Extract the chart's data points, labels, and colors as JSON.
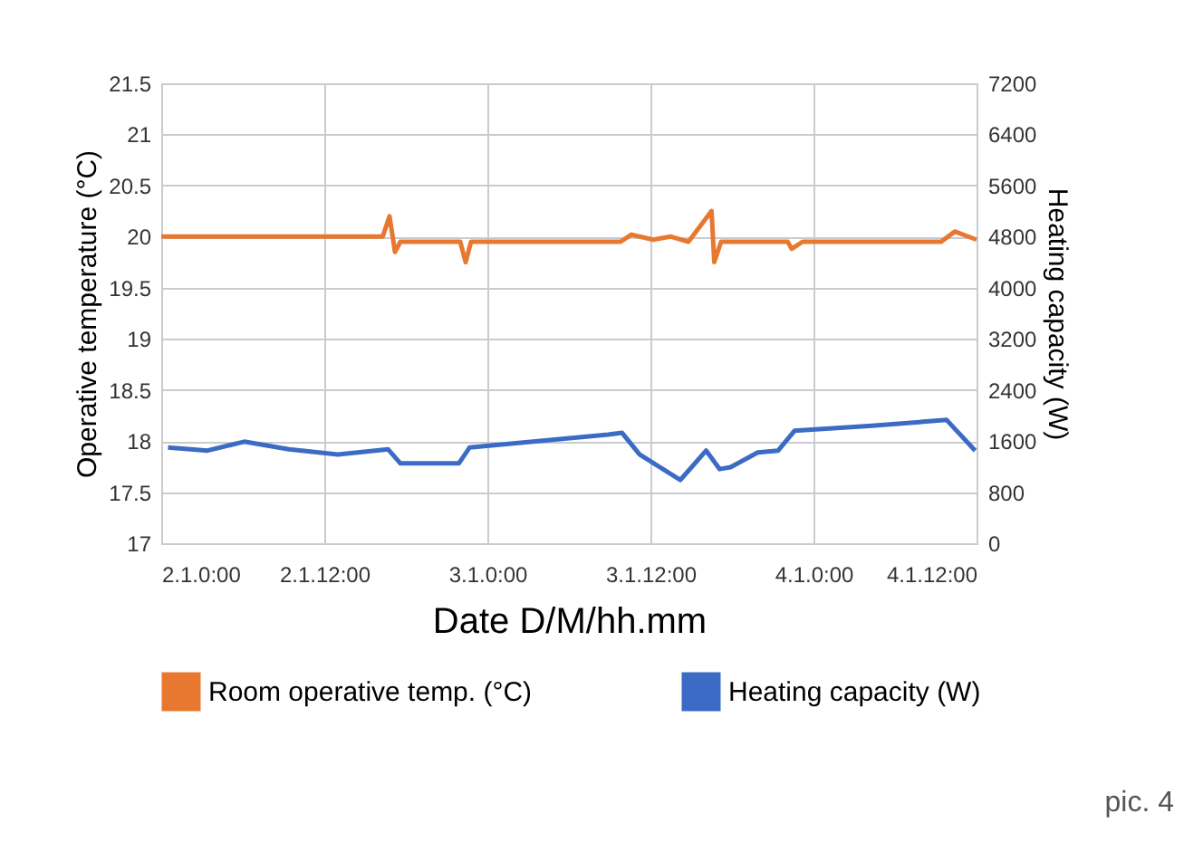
{
  "chart_data": {
    "type": "line",
    "xlabel": "Date D/M/hh.mm",
    "ylabel": "Operative temperature (°C)",
    "y2label": "Heating capacity (W)",
    "xlim": [
      "--01-02T00:00",
      "--01-04T12:00"
    ],
    "xticks": [
      {
        "value": "--01-02T00:00",
        "label": "2.1.0:00"
      },
      {
        "value": "--01-02T12:00",
        "label": "2.1.12:00"
      },
      {
        "value": "--01-03T00:00",
        "label": "3.1.0:00"
      },
      {
        "value": "--01-03T12:00",
        "label": "3.1.12:00"
      },
      {
        "value": "--01-04T00:00",
        "label": "4.1.0:00"
      },
      {
        "value": "--01-04T12:00",
        "label": "4.1.12:00"
      }
    ],
    "ylim": [
      17,
      21.5
    ],
    "yticks": [
      17,
      17.5,
      18,
      18.5,
      19,
      19.5,
      20,
      20.5,
      21,
      21.5
    ],
    "y2lim": [
      0,
      7200
    ],
    "y2ticks": [
      0,
      800,
      1600,
      2400,
      3200,
      4000,
      4800,
      5600,
      6400,
      7200
    ],
    "grid": true,
    "legend": "bottom",
    "annotations": [
      "pic. 4"
    ],
    "series": [
      {
        "name": "Room operative temp. (°C)",
        "color": "#e8782f",
        "x": [
          "--01-02T00:00",
          "--01-02T16:18",
          "--01-02T16:48",
          "--01-02T17:12",
          "--01-02T17:36",
          "--01-02T22:00",
          "--01-02T22:24",
          "--01-02T22:48",
          "--01-03T09:48",
          "--01-03T10:36",
          "--01-03T12:12",
          "--01-03T13:30",
          "--01-03T14:48",
          "--01-03T16:30",
          "--01-03T16:42",
          "--01-03T17:12",
          "--01-03T22:06",
          "--01-03T22:24",
          "--01-03T23:12",
          "--01-04T09:24",
          "--01-04T10:24",
          "--01-04T12:00"
        ],
        "values": [
          20,
          20,
          20.2,
          19.85,
          19.95,
          19.95,
          19.75,
          19.95,
          19.95,
          20.02,
          19.97,
          20,
          19.95,
          20.25,
          19.75,
          19.95,
          19.95,
          19.88,
          19.95,
          19.95,
          20.05,
          19.97
        ]
      },
      {
        "name": "Heating capacity (W)",
        "color": "#3b6bc4",
        "axis": "y2",
        "x": [
          "--01-02T00:30",
          "--01-02T03:24",
          "--01-02T06:06",
          "--01-02T09:24",
          "--01-02T13:00",
          "--01-02T16:42",
          "--01-02T17:36",
          "--01-02T21:54",
          "--01-02T22:42",
          "--01-03T08:54",
          "--01-03T09:54",
          "--01-03T11:12",
          "--01-03T14:12",
          "--01-03T16:06",
          "--01-03T17:06",
          "--01-03T17:54",
          "--01-03T19:54",
          "--01-03T21:24",
          "--01-03T22:36",
          "--01-04T04:18",
          "--01-04T09:48",
          "--01-04T11:54"
        ],
        "values": [
          1500,
          1450,
          1590,
          1470,
          1390,
          1470,
          1250,
          1250,
          1500,
          1700,
          1730,
          1390,
          990,
          1450,
          1160,
          1190,
          1420,
          1450,
          1760,
          1840,
          1930,
          1450
        ]
      }
    ]
  }
}
